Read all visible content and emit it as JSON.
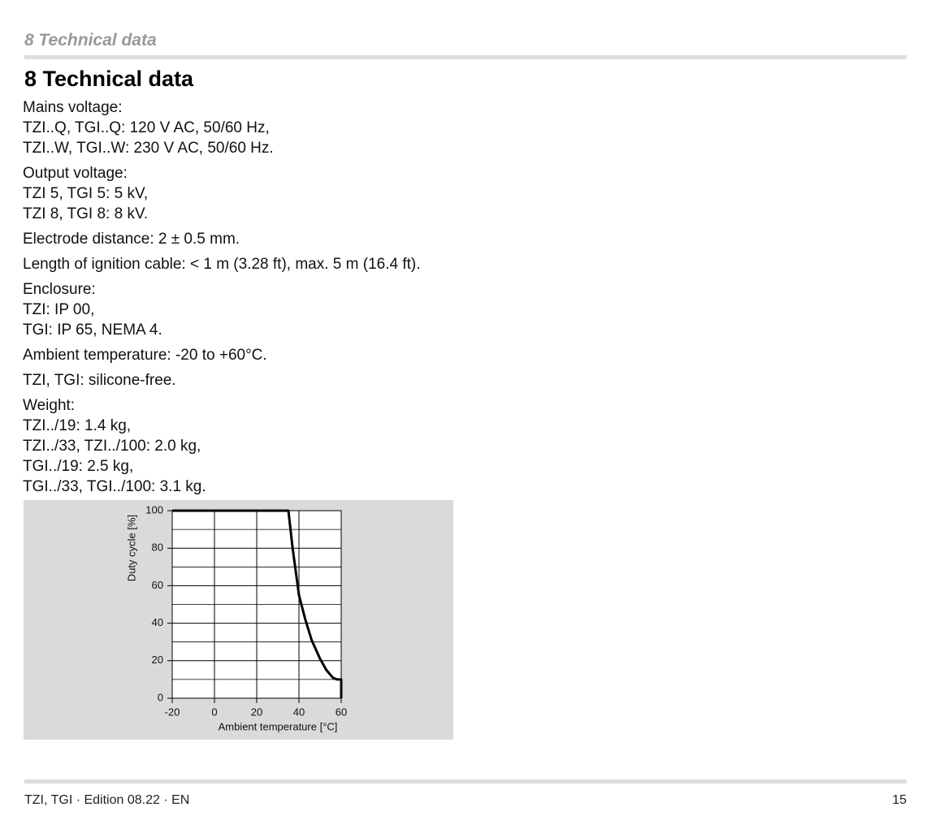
{
  "header": {
    "running_title": "8 Technical data",
    "title": "8 Technical data"
  },
  "paragraphs": [
    {
      "lines": [
        "Mains voltage:",
        "TZI..Q, TGI..Q: 120 V AC, 50/60 Hz,",
        "TZI..W, TGI..W: 230 V AC, 50/60 Hz."
      ]
    },
    {
      "lines": [
        "Output voltage:",
        "TZI 5, TGI 5: 5 kV,",
        "TZI 8, TGI 8: 8 kV."
      ]
    },
    {
      "lines": [
        "Electrode distance: 2 ± 0.5 mm."
      ]
    },
    {
      "lines": [
        "Length of ignition cable: < 1 m (3.28 ft), max. 5 m (16.4 ft)."
      ]
    },
    {
      "lines": [
        "Enclosure:",
        "TZI: IP 00,",
        "TGI: IP 65, NEMA 4."
      ]
    },
    {
      "lines": [
        "Ambient temperature: -20 to +60°C."
      ]
    },
    {
      "lines": [
        "TZI, TGI: silicone-free."
      ]
    },
    {
      "lines": [
        "Weight:",
        "TZI../19: 1.4 kg,",
        "TZI../33, TZI../100: 2.0 kg,",
        "TGI../19: 2.5 kg,",
        "TGI../33, TGI../100: 3.1 kg."
      ]
    }
  ],
  "chart_data": {
    "type": "line",
    "x_label": "Ambient temperature [°C]",
    "y_label": "Duty cycle [%]",
    "x": [
      -20,
      35,
      37,
      40,
      43,
      46,
      50,
      53,
      56,
      58,
      60,
      60
    ],
    "series": [
      {
        "color": "#000000",
        "values": [
          100,
          100,
          80,
          55,
          42,
          31,
          21,
          15,
          11,
          10,
          10,
          0
        ]
      }
    ],
    "xlim": [
      -20,
      60
    ],
    "ylim": [
      0,
      100
    ],
    "xticks": [
      -20,
      0,
      20,
      40,
      60
    ],
    "yticks": [
      0,
      20,
      40,
      60,
      80,
      100
    ],
    "yminor_ticks": [
      10,
      30,
      50,
      70,
      90
    ],
    "grid": true
  },
  "footer": {
    "left": "TZI, TGI · Edition 08.22 · EN",
    "page": "15"
  }
}
